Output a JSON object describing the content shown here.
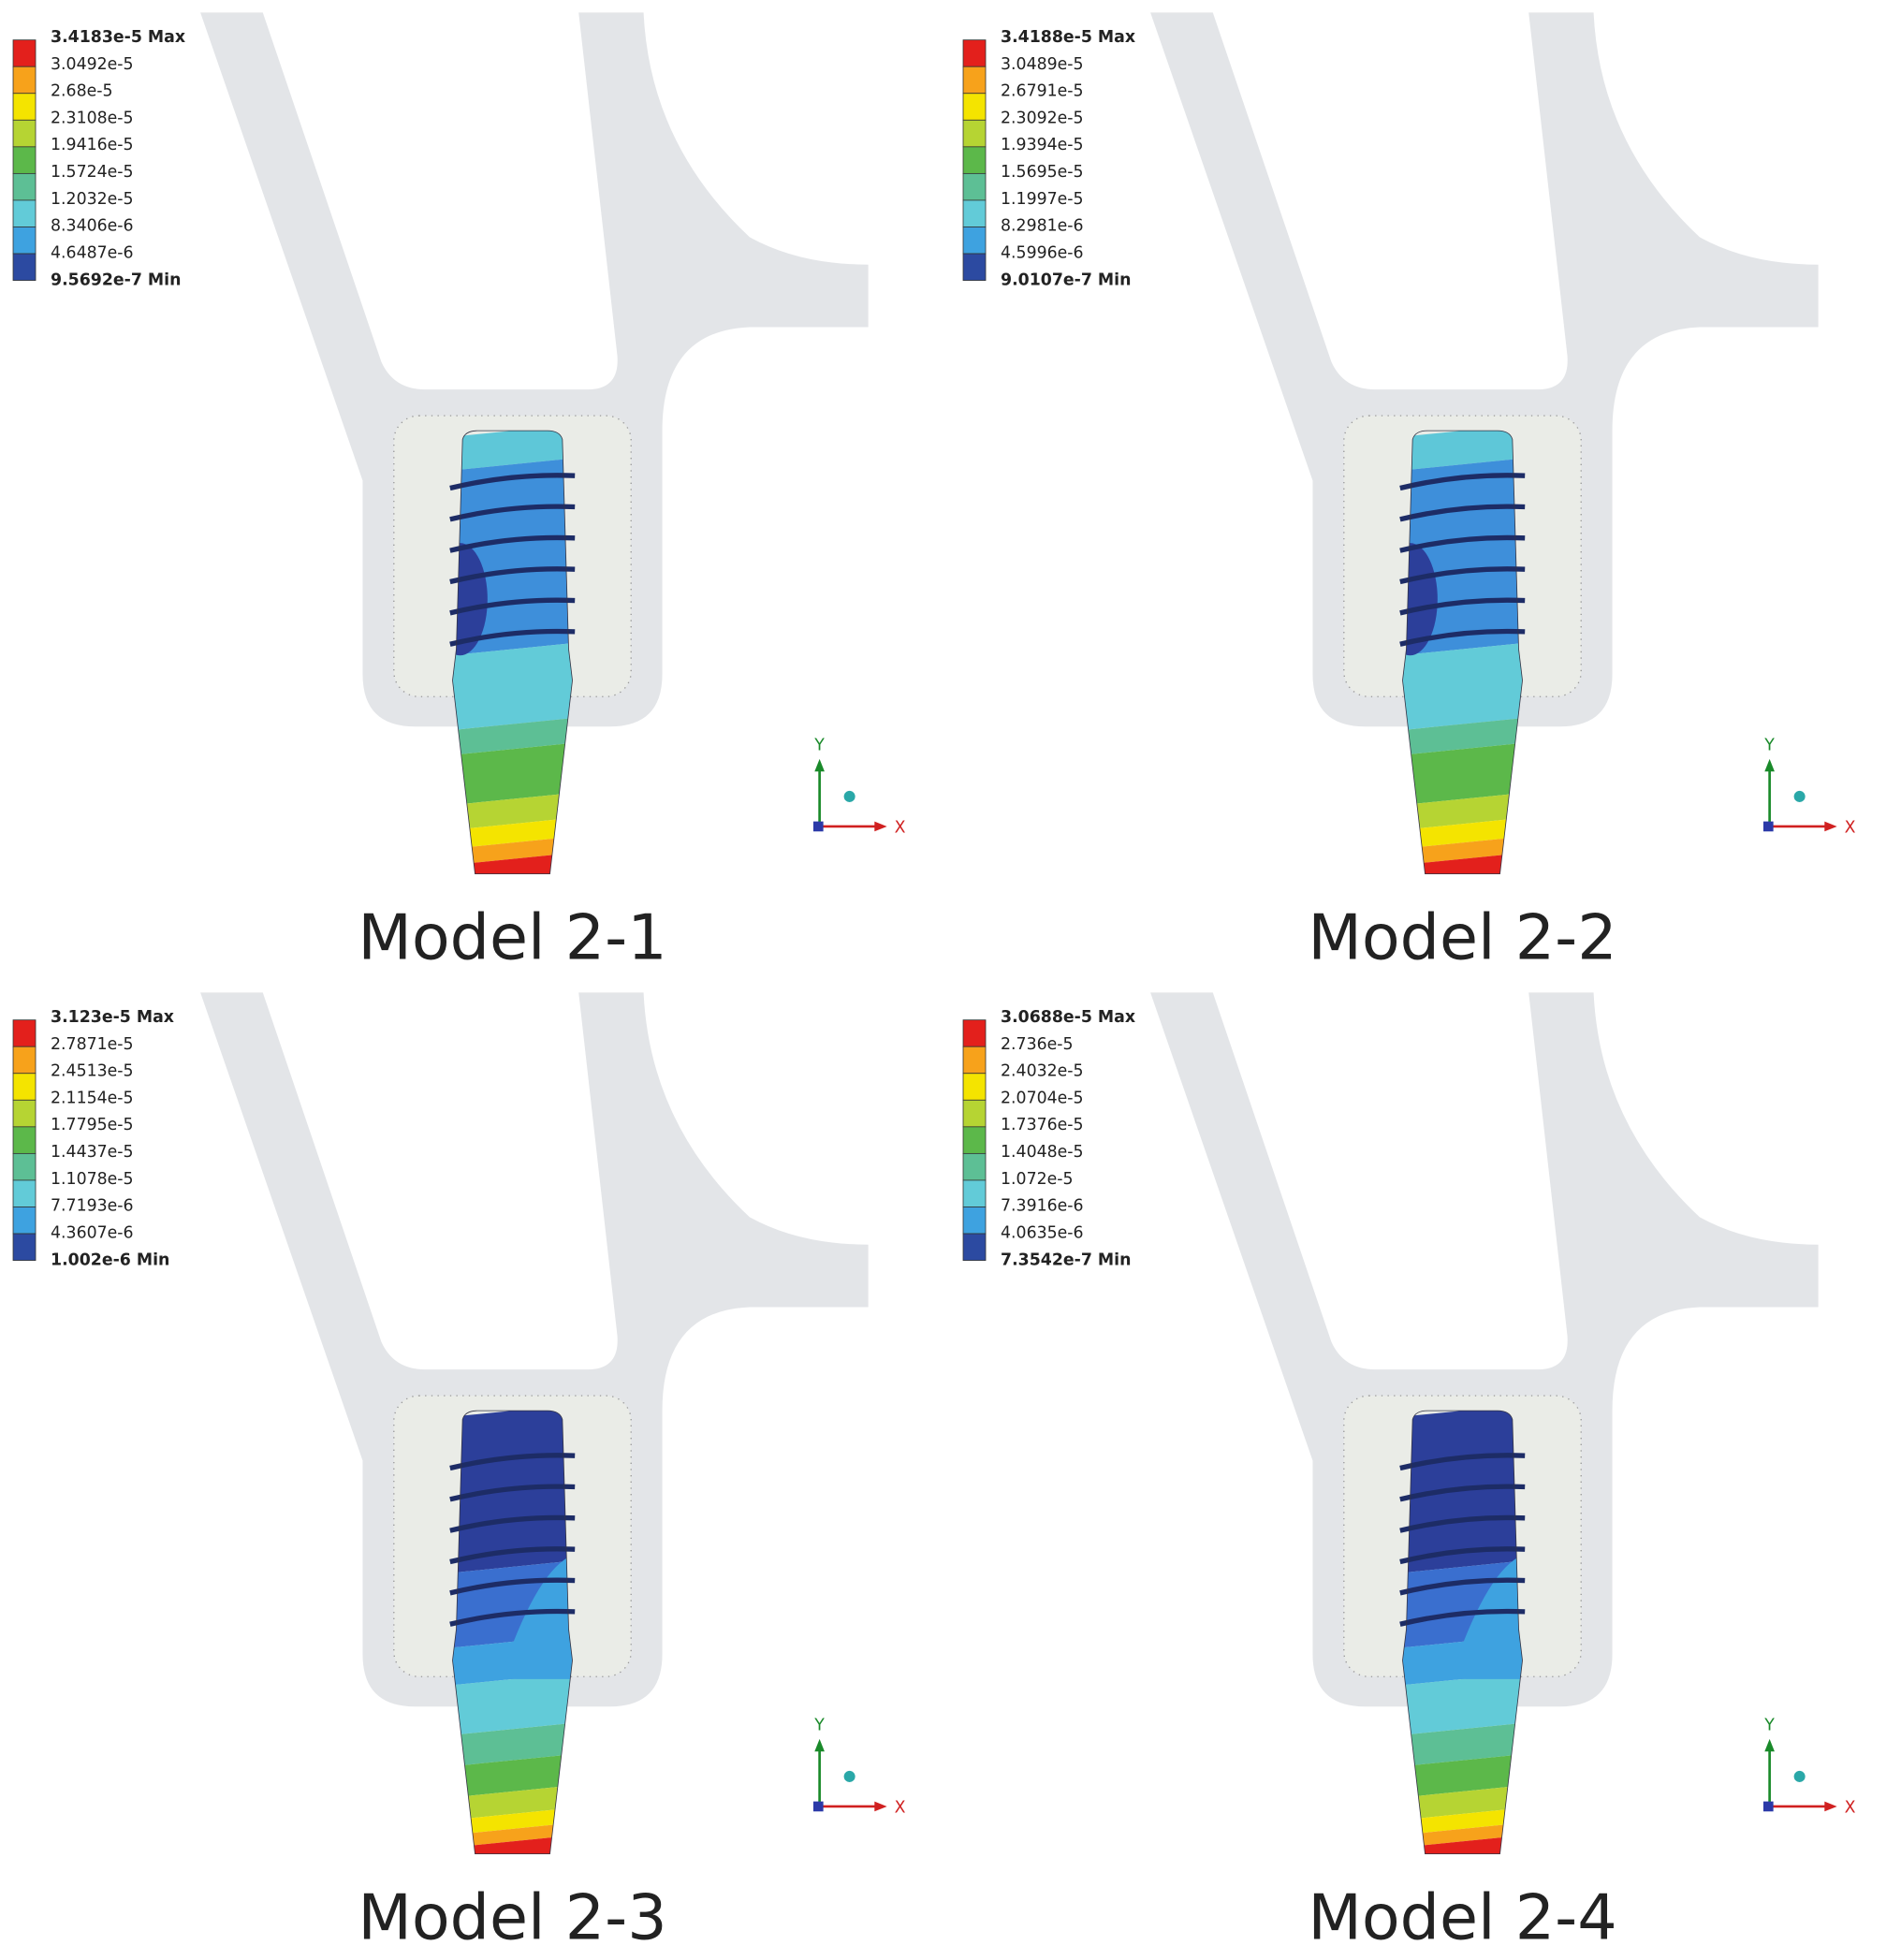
{
  "panels": [
    {
      "legend": [
        "3.4183e-5 Max",
        "3.0492e-5",
        "2.68e-5",
        "2.3108e-5",
        "1.9416e-5",
        "1.5724e-5",
        "1.2032e-5",
        "8.3406e-6",
        "4.6487e-6",
        "9.5692e-7 Min"
      ],
      "caption": "Model 2-1",
      "axis_x": "X",
      "axis_y": "Y"
    },
    {
      "legend": [
        "3.4188e-5 Max",
        "3.0489e-5",
        "2.6791e-5",
        "2.3092e-5",
        "1.9394e-5",
        "1.5695e-5",
        "1.1997e-5",
        "8.2981e-6",
        "4.5996e-6",
        "9.0107e-7 Min"
      ],
      "caption": "Model 2-2",
      "axis_x": "X",
      "axis_y": "Y"
    },
    {
      "legend": [
        "3.123e-5 Max",
        "2.7871e-5",
        "2.4513e-5",
        "2.1154e-5",
        "1.7795e-5",
        "1.4437e-5",
        "1.1078e-5",
        "7.7193e-6",
        "4.3607e-6",
        "1.002e-6 Min"
      ],
      "caption": "Model 2-3",
      "axis_x": "X",
      "axis_y": "Y"
    },
    {
      "legend": [
        "3.0688e-5 Max",
        "2.736e-5",
        "2.4032e-5",
        "2.0704e-5",
        "1.7376e-5",
        "1.4048e-5",
        "1.072e-5",
        "7.3916e-6",
        "4.0635e-6",
        "7.3542e-7 Min"
      ],
      "caption": "Model 2-4",
      "axis_x": "X",
      "axis_y": "Y"
    }
  ]
}
